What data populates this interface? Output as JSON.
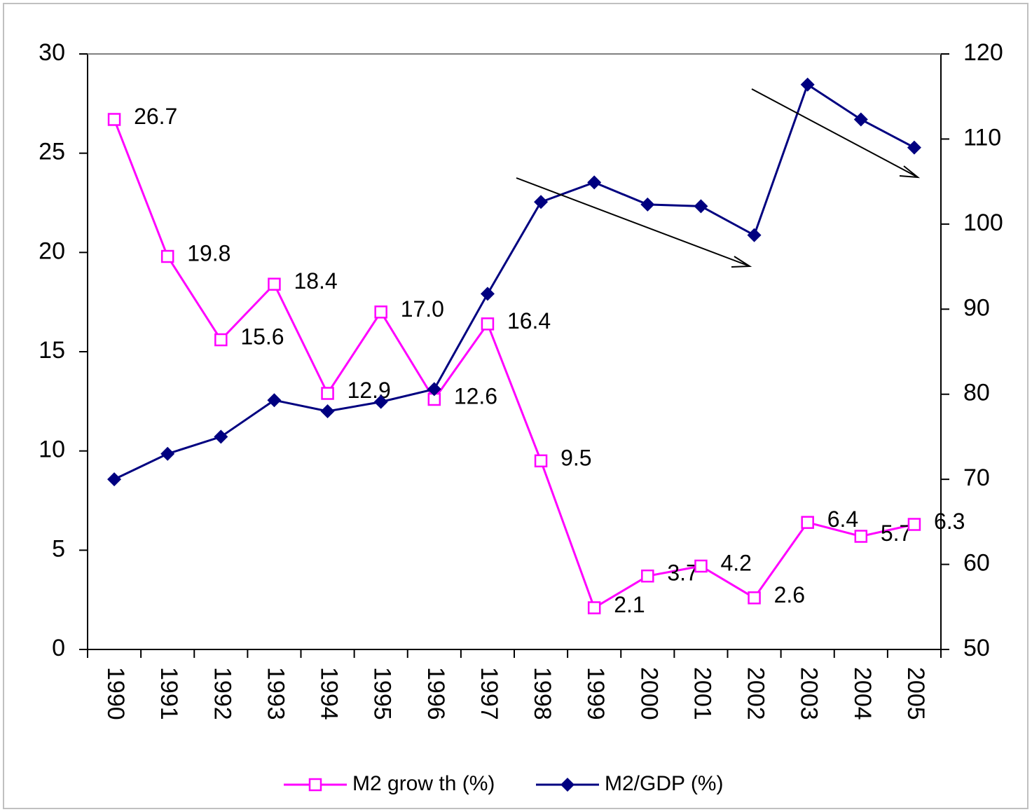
{
  "chart_data": {
    "type": "line",
    "categories": [
      "1990",
      "1991",
      "1992",
      "1993",
      "1994",
      "1995",
      "1996",
      "1997",
      "1998",
      "1999",
      "2000",
      "2001",
      "2002",
      "2003",
      "2004",
      "2005"
    ],
    "series": [
      {
        "name": "M2 grow th (%)",
        "color": "#ff00ff",
        "marker": "square",
        "values": [
          26.7,
          19.8,
          15.6,
          18.4,
          12.9,
          17.0,
          12.6,
          16.4,
          9.5,
          2.1,
          3.7,
          4.2,
          2.6,
          6.4,
          5.7,
          6.3
        ],
        "value_labels": [
          "26.7",
          "19.8",
          "15.6",
          "18.4",
          "12.9",
          "17.0",
          "12.6",
          "16.4",
          "9.5",
          "2.1",
          "3.7",
          "4.2",
          "2.6",
          "6.4",
          "5.7",
          "6.3"
        ]
      },
      {
        "name": "M2/GDP (%)",
        "color": "#000080",
        "marker": "diamond",
        "axis": "y2",
        "values": [
          70.0,
          73.0,
          75.0,
          79.3,
          78.0,
          79.1,
          80.6,
          91.8,
          102.6,
          104.9,
          102.3,
          102.1,
          98.7,
          116.4,
          112.3,
          109.0
        ]
      }
    ],
    "ylim": [
      0,
      30
    ],
    "yticks": [
      0,
      5,
      10,
      15,
      20,
      25,
      30
    ],
    "y2lim": [
      50,
      120
    ],
    "y2ticks": [
      50,
      60,
      70,
      80,
      90,
      100,
      110,
      120
    ],
    "grid": false,
    "legend": "bottom"
  }
}
